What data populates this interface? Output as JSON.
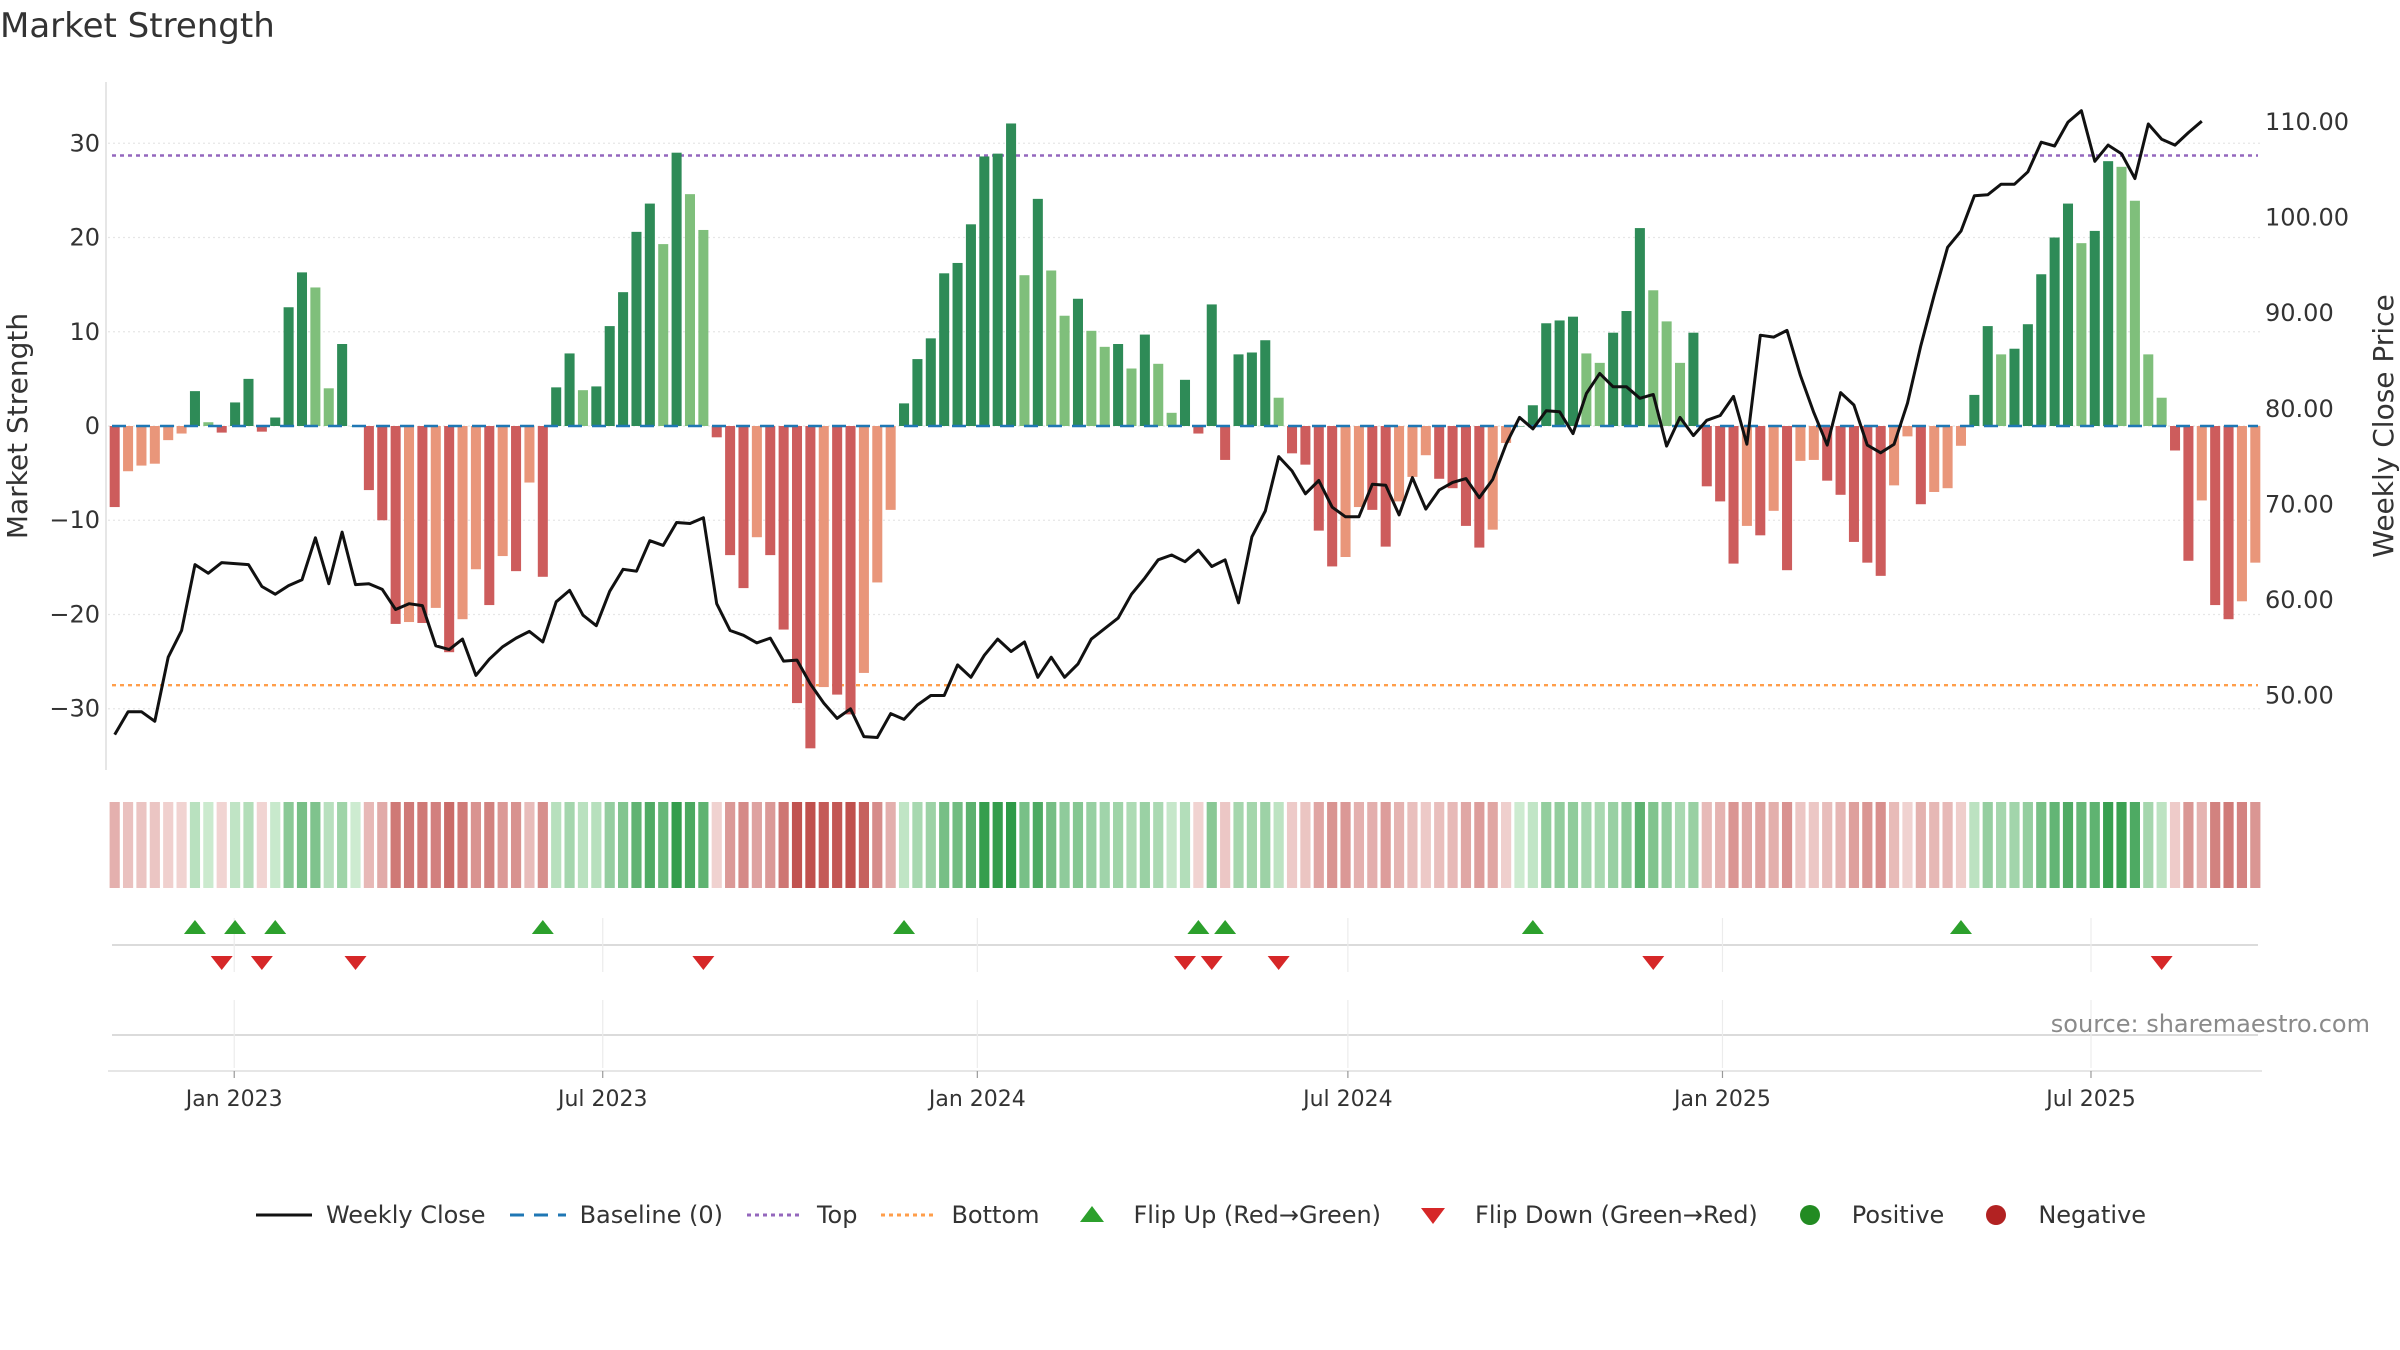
{
  "chart_data": {
    "type": "bar",
    "title": "Market Strength",
    "source": "source: sharemaestro.com",
    "left_axis": {
      "label": "Market Strength",
      "ticks": [
        30,
        20,
        10,
        0,
        -10,
        -20,
        -30
      ],
      "tick_labels": [
        "30",
        "20",
        "10",
        "0",
        "−10",
        "−20",
        "−30"
      ],
      "range": [
        -36.5,
        36.5
      ]
    },
    "right_axis": {
      "label": "Weekly Close Price",
      "ticks": [
        110,
        100,
        90,
        80,
        70,
        60,
        50
      ],
      "tick_labels": [
        "110.00",
        "100.00",
        "90.00",
        "80.00",
        "70.00",
        "60.00",
        "50.00"
      ],
      "range": [
        42.2,
        114.2
      ]
    },
    "x_axis": {
      "start": "2022-10-31",
      "end": "2025-09-23",
      "ticks": [
        "2023-01-01",
        "2023-07-01",
        "2024-01-01",
        "2024-07-01",
        "2025-01-01",
        "2025-07-01"
      ],
      "tick_labels": [
        "Jan 2023",
        "Jul 2023",
        "Jan 2024",
        "Jul 2024",
        "Jan 2025",
        "Jul 2025"
      ]
    },
    "top_level": 28.7,
    "bottom_level": -27.5,
    "strength_series_name": "Market Strength",
    "strength": [
      -8.6,
      -4.8,
      -4.2,
      -4.0,
      -1.5,
      -0.8,
      3.7,
      0.4,
      -0.7,
      2.5,
      5.0,
      -0.6,
      0.9,
      12.6,
      16.3,
      14.7,
      4.0,
      8.7,
      0,
      -6.8,
      -10.0,
      -21.0,
      -20.8,
      -20.9,
      -19.3,
      -24.0,
      -20.5,
      -15.2,
      -19.0,
      -13.8,
      -15.4,
      -6.0,
      -16.0,
      4.1,
      7.7,
      3.8,
      4.2,
      10.6,
      14.2,
      20.6,
      23.6,
      19.3,
      29.0,
      24.6,
      20.8,
      -1.2,
      -13.7,
      -17.2,
      -11.8,
      -13.7,
      -21.6,
      -29.4,
      -34.2,
      -27.7,
      -28.5,
      -30.6,
      -26.2,
      -16.6,
      -8.9,
      2.4,
      7.1,
      9.3,
      16.2,
      17.3,
      21.4,
      28.6,
      28.9,
      32.1,
      16.0,
      24.1,
      16.5,
      11.7,
      13.5,
      10.1,
      8.4,
      8.7,
      6.1,
      9.7,
      6.6,
      1.4,
      4.9,
      -0.8,
      12.9,
      -3.6,
      7.6,
      7.8,
      9.1,
      3.0,
      -2.9,
      -4.1,
      -11.1,
      -14.9,
      -13.9,
      -8.6,
      -8.9,
      -12.8,
      -8.0,
      -5.4,
      -3.1,
      -5.6,
      -6.6,
      -10.6,
      -12.9,
      -11.0,
      -1.8,
      0,
      2.2,
      10.9,
      11.2,
      11.6,
      7.7,
      6.7,
      9.9,
      12.2,
      21.0,
      14.4,
      11.1,
      6.7,
      9.9,
      -6.4,
      -8.0,
      -14.6,
      -10.6,
      -11.6,
      -9.0,
      -15.3,
      -3.7,
      -3.6,
      -5.8,
      -7.3,
      -12.3,
      -14.5,
      -15.9,
      -6.3,
      -1.1,
      -8.3,
      -7.0,
      -6.6,
      -2.1,
      3.3,
      10.6,
      7.6,
      8.2,
      10.8,
      16.1,
      20.0,
      23.6,
      19.4,
      20.7,
      28.1,
      27.5,
      23.9,
      7.6,
      3.0,
      -2.6,
      -14.3,
      -7.9,
      -19.0,
      -20.5,
      -18.6,
      -14.5
    ],
    "close_series_name": "Weekly Close",
    "weekly_close": [
      45.9,
      48.3,
      48.3,
      47.3,
      54.0,
      56.8,
      63.7,
      62.8,
      63.9,
      63.8,
      63.7,
      61.4,
      60.6,
      61.5,
      62.1,
      66.5,
      61.7,
      67.1,
      61.6,
      61.7,
      61.1,
      59.0,
      59.6,
      59.4,
      55.2,
      54.8,
      55.9,
      52.1,
      53.8,
      55.1,
      56.0,
      56.7,
      55.6,
      59.8,
      61.0,
      58.4,
      57.3,
      60.9,
      63.2,
      63.0,
      66.2,
      65.7,
      68.1,
      68.0,
      68.6,
      59.6,
      56.8,
      56.3,
      55.5,
      56.0,
      53.6,
      53.7,
      51.2,
      49.2,
      47.6,
      48.6,
      45.7,
      45.6,
      48.1,
      47.5,
      49.0,
      50.0,
      50.0,
      53.2,
      51.9,
      54.2,
      55.9,
      54.6,
      55.6,
      51.9,
      54.0,
      51.9,
      53.3,
      55.9,
      57.0,
      58.1,
      60.6,
      62.3,
      64.2,
      64.7,
      64.0,
      65.2,
      63.5,
      64.2,
      59.7,
      66.6,
      69.3,
      75.0,
      73.5,
      71.1,
      72.5,
      69.7,
      68.7,
      68.7,
      72.1,
      72.0,
      68.9,
      72.8,
      69.5,
      71.5,
      72.3,
      72.7,
      70.7,
      72.6,
      76.3,
      79.1,
      77.9,
      79.8,
      79.7,
      77.4,
      81.6,
      83.7,
      82.3,
      82.3,
      81.1,
      81.5,
      76.1,
      79.1,
      77.2,
      78.8,
      79.3,
      81.3,
      76.3,
      87.7,
      87.5,
      88.2,
      83.5,
      79.6,
      76.2,
      81.7,
      80.4,
      76.2,
      75.4,
      76.3,
      80.6,
      86.6,
      91.9,
      96.9,
      98.6,
      102.3,
      102.4,
      103.5,
      103.5,
      104.8,
      107.9,
      107.5,
      110.0,
      111.2,
      105.9,
      107.6,
      106.7,
      104.1,
      109.8,
      108.2,
      107.6,
      108.9,
      110.1
    ],
    "flip_up_weeks": [
      6,
      9,
      12,
      32,
      59,
      81,
      83,
      106,
      138
    ],
    "flip_down_weeks": [
      8,
      11,
      18,
      44,
      80,
      82,
      87,
      115,
      153
    ],
    "legend": [
      "Weekly Close",
      "Baseline (0)",
      "Top",
      "Bottom",
      "Flip Up (Red→Green)",
      "Flip Down (Green→Red)",
      "Positive",
      "Negative"
    ],
    "colors": {
      "pos_strong": "#2e8b57",
      "pos_weak": "#7fbf7b",
      "neg_strong": "#cd5c5c",
      "neg_weak": "#e9967a",
      "close": "#111111",
      "baseline": "#1f77b4",
      "top": "#9467bd",
      "bottom": "#ff9e4a",
      "flip_up": "#2ca02c",
      "flip_down": "#d62728",
      "positive_dot": "#228b22",
      "negative_dot": "#b22222"
    }
  }
}
